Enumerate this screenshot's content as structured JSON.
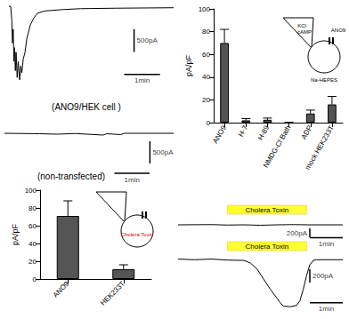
{
  "chart_data": [
    {
      "type": "line",
      "caption": "(ANO9/HEK cell )",
      "color": "#000000",
      "tick_labels": false,
      "x": [
        0,
        0.05,
        0.08,
        0.1,
        0.12,
        0.14,
        0.16,
        0.18,
        0.2,
        0.23,
        0.26,
        0.3,
        0.33,
        0.36,
        0.4,
        0.45,
        0.5,
        0.6,
        0.7,
        0.8,
        1.0,
        1.5,
        2.0,
        3.0,
        4.6
      ],
      "values": [
        0,
        0,
        -300,
        -800,
        -500,
        -1200,
        -900,
        -1400,
        -1000,
        -1550,
        -1200,
        -1600,
        -1300,
        -1450,
        -1150,
        -1000,
        -700,
        -400,
        -250,
        -150,
        -100,
        -70,
        -50,
        -40,
        -30
      ],
      "xlim": [
        0,
        4.6
      ],
      "ylim": [
        -1700,
        100
      ],
      "scale_bars": [
        {
          "axis": "y",
          "value": 500,
          "label": "500pA"
        },
        {
          "axis": "x",
          "value": 1,
          "label": "1min"
        }
      ]
    },
    {
      "type": "line",
      "caption": "(non-transfected)",
      "color": "#000000",
      "tick_labels": false,
      "x": [
        0,
        1,
        1.5,
        2,
        2.8,
        2.9,
        3.3,
        3.4,
        4.8
      ],
      "values": [
        0,
        -10,
        -20,
        -5,
        -40,
        -10,
        -30,
        0,
        0
      ],
      "xlim": [
        0,
        4.8
      ],
      "ylim": [
        -1300,
        300
      ],
      "scale_bars": [
        {
          "axis": "y",
          "value": 500,
          "label": "500pA"
        },
        {
          "axis": "x",
          "value": 1,
          "label": "1min"
        }
      ]
    },
    {
      "type": "bar",
      "y_label": "pA/pF",
      "color": "#555555",
      "grid": false,
      "categories": [
        "ANO9",
        "H-7",
        "H-89",
        "NMDG-Cl Bath",
        "ADP",
        "mock HEK233T"
      ],
      "values": [
        70,
        2,
        2.5,
        0,
        8,
        16
      ],
      "errors": [
        12,
        1.5,
        1.5,
        0,
        3,
        7
      ],
      "ylim": [
        0,
        100
      ],
      "yticks": [
        0,
        20,
        40,
        60,
        80,
        100
      ],
      "annotations": [
        "KCl",
        "cAMP",
        "ANO9",
        "Na-HEPES"
      ]
    },
    {
      "type": "bar",
      "y_label": "pA/pF",
      "color": "#555555",
      "grid": false,
      "categories": [
        "ANO9",
        "HEK233T"
      ],
      "values": [
        71,
        11
      ],
      "errors": [
        17,
        5
      ],
      "ylim": [
        0,
        100
      ],
      "yticks": [
        0,
        20,
        40,
        60,
        80,
        100
      ],
      "annotations": [
        "Cholera Toxin"
      ]
    },
    {
      "type": "line",
      "color": "#000000",
      "tick_labels": false,
      "x": [
        0,
        1,
        1.5,
        2,
        2.5,
        3,
        3.5,
        4,
        5
      ],
      "values": [
        0,
        5,
        -5,
        0,
        -10,
        0,
        5,
        0,
        0
      ],
      "xlim": [
        0,
        5
      ],
      "ylim": [
        -300,
        200
      ],
      "treatment": {
        "label": "Cholera Toxin",
        "start": 1.5,
        "end": 3.9
      },
      "scale_bars": [
        {
          "axis": "y",
          "value": 200,
          "label": "200pA"
        },
        {
          "axis": "x",
          "value": 1,
          "label": "1min"
        }
      ]
    },
    {
      "type": "line",
      "color": "#000000",
      "tick_labels": false,
      "x": [
        0,
        0.5,
        1,
        1.5,
        2,
        2.2,
        2.4,
        2.6,
        2.8,
        3.0,
        3.1,
        3.2,
        3.4,
        3.6,
        3.7,
        3.8,
        3.9,
        4.0,
        4.05,
        4.1,
        4.2,
        5
      ],
      "values": [
        0,
        -10,
        0,
        -15,
        -20,
        -60,
        -150,
        -300,
        -450,
        -580,
        -650,
        -700,
        -710,
        -690,
        -620,
        -450,
        -250,
        -80,
        -60,
        -20,
        -10,
        -10
      ],
      "xlim": [
        0,
        5
      ],
      "ylim": [
        -800,
        100
      ],
      "treatment": {
        "label": "Cholera Toxin",
        "start": 1.5,
        "end": 3.9
      },
      "scale_bars": [
        {
          "axis": "y",
          "value": 200,
          "label": "200pA"
        },
        {
          "axis": "x",
          "value": 1,
          "label": "1min"
        }
      ]
    }
  ]
}
